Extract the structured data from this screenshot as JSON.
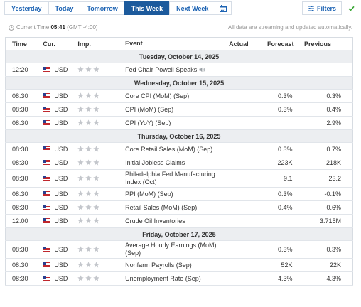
{
  "tabs": [
    "Yesterday",
    "Today",
    "Tomorrow",
    "This Week",
    "Next Week"
  ],
  "active_tab": "This Week",
  "filters_label": "Filters",
  "current_time_label": "Current Time:",
  "current_time": "05:41",
  "timezone": "(GMT -4:00)",
  "stream_note": "All data are streaming and updated automatically.",
  "columns": {
    "time": "Time",
    "currency": "Cur.",
    "importance": "Imp.",
    "event": "Event",
    "actual": "Actual",
    "forecast": "Forecast",
    "previous": "Previous"
  },
  "colors": {
    "accent": "#1c5a9c",
    "link": "#1e64b4",
    "star_inactive": "#c4c7cc",
    "check": "#3aa835"
  },
  "days": [
    {
      "date": "Tuesday, October 14, 2025",
      "events": [
        {
          "time": "12:20",
          "currency": "USD",
          "importance": 0,
          "event": "Fed Chair Powell Speaks",
          "speaker_icon": true,
          "actual": "",
          "forecast": "",
          "previous": ""
        }
      ]
    },
    {
      "date": "Wednesday, October 15, 2025",
      "events": [
        {
          "time": "08:30",
          "currency": "USD",
          "importance": 0,
          "event": "Core CPI (MoM) (Sep)",
          "actual": "",
          "forecast": "0.3%",
          "previous": "0.3%"
        },
        {
          "time": "08:30",
          "currency": "USD",
          "importance": 0,
          "event": "CPI (MoM) (Sep)",
          "actual": "",
          "forecast": "0.3%",
          "previous": "0.4%"
        },
        {
          "time": "08:30",
          "currency": "USD",
          "importance": 0,
          "event": "CPI (YoY) (Sep)",
          "actual": "",
          "forecast": "",
          "previous": "2.9%"
        }
      ]
    },
    {
      "date": "Thursday, October 16, 2025",
      "events": [
        {
          "time": "08:30",
          "currency": "USD",
          "importance": 0,
          "event": "Core Retail Sales (MoM) (Sep)",
          "actual": "",
          "forecast": "0.3%",
          "previous": "0.7%"
        },
        {
          "time": "08:30",
          "currency": "USD",
          "importance": 0,
          "event": "Initial Jobless Claims",
          "actual": "",
          "forecast": "223K",
          "previous": "218K"
        },
        {
          "time": "08:30",
          "currency": "USD",
          "importance": 0,
          "event": "Philadelphia Fed Manufacturing Index (Oct)",
          "tall": true,
          "actual": "",
          "forecast": "9.1",
          "previous": "23.2"
        },
        {
          "time": "08:30",
          "currency": "USD",
          "importance": 0,
          "event": "PPI (MoM) (Sep)",
          "actual": "",
          "forecast": "0.3%",
          "previous": "-0.1%"
        },
        {
          "time": "08:30",
          "currency": "USD",
          "importance": 0,
          "event": "Retail Sales (MoM) (Sep)",
          "actual": "",
          "forecast": "0.4%",
          "previous": "0.6%"
        },
        {
          "time": "12:00",
          "currency": "USD",
          "importance": 0,
          "event": "Crude Oil Inventories",
          "actual": "",
          "forecast": "",
          "previous": "3.715M"
        }
      ]
    },
    {
      "date": "Friday, October 17, 2025",
      "events": [
        {
          "time": "08:30",
          "currency": "USD",
          "importance": 0,
          "event": "Average Hourly Earnings (MoM) (Sep)",
          "tall": true,
          "actual": "",
          "forecast": "0.3%",
          "previous": "0.3%"
        },
        {
          "time": "08:30",
          "currency": "USD",
          "importance": 0,
          "event": "Nonfarm Payrolls (Sep)",
          "actual": "",
          "forecast": "52K",
          "previous": "22K"
        },
        {
          "time": "08:30",
          "currency": "USD",
          "importance": 0,
          "event": "Unemployment Rate (Sep)",
          "actual": "",
          "forecast": "4.3%",
          "previous": "4.3%"
        }
      ]
    }
  ]
}
